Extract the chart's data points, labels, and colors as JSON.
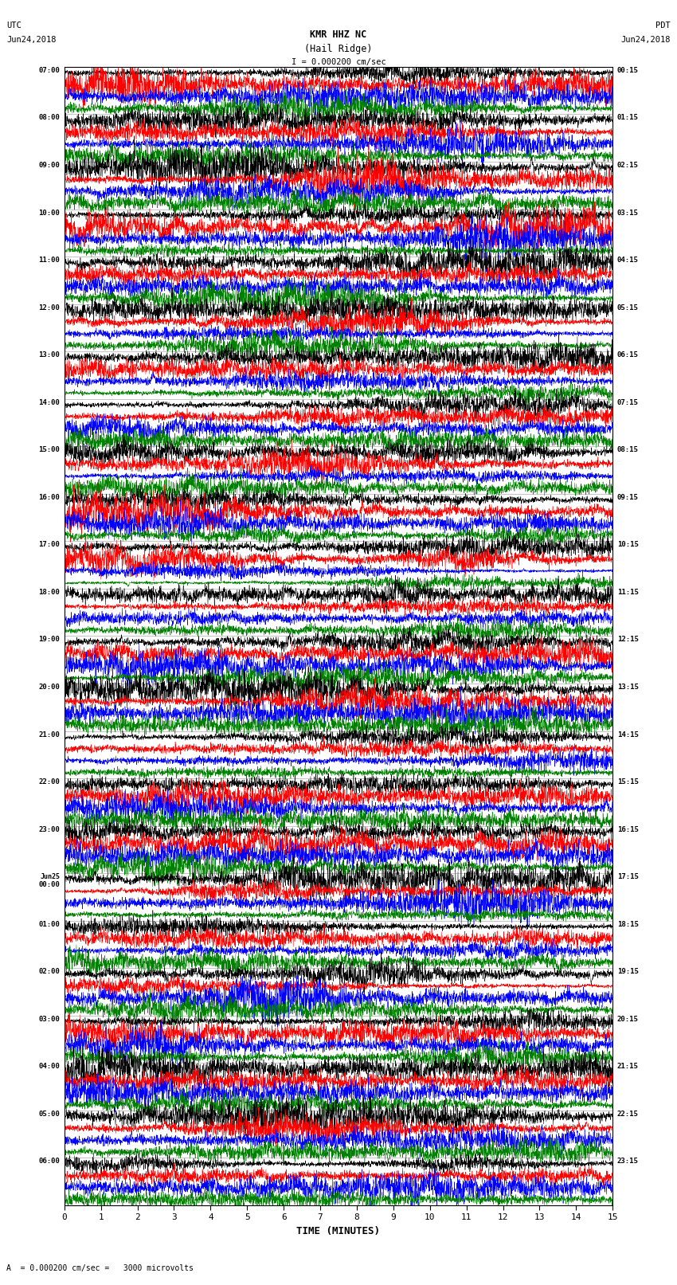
{
  "title_line1": "KMR HHZ NC",
  "title_line2": "(Hail Ridge)",
  "scale_bar": "I = 0.000200 cm/sec",
  "xlabel": "TIME (MINUTES)",
  "footer_note": "= 0.000200 cm/sec =   3000 microvolts",
  "x_min": 0,
  "x_max": 15,
  "x_ticks": [
    0,
    1,
    2,
    3,
    4,
    5,
    6,
    7,
    8,
    9,
    10,
    11,
    12,
    13,
    14,
    15
  ],
  "utc_labels": [
    "07:00",
    "08:00",
    "09:00",
    "10:00",
    "11:00",
    "12:00",
    "13:00",
    "14:00",
    "15:00",
    "16:00",
    "17:00",
    "18:00",
    "19:00",
    "20:00",
    "21:00",
    "22:00",
    "23:00",
    "Jun25\n00:00",
    "01:00",
    "02:00",
    "03:00",
    "04:00",
    "05:00",
    "06:00"
  ],
  "pdt_labels": [
    "00:15",
    "01:15",
    "02:15",
    "03:15",
    "04:15",
    "05:15",
    "06:15",
    "07:15",
    "08:15",
    "09:15",
    "10:15",
    "11:15",
    "12:15",
    "13:15",
    "14:15",
    "15:15",
    "16:15",
    "17:15",
    "18:15",
    "19:15",
    "20:15",
    "21:15",
    "22:15",
    "23:15"
  ],
  "n_hours": 24,
  "traces_per_hour": 4,
  "colors": [
    "black",
    "red",
    "blue",
    "green"
  ],
  "fig_width": 8.5,
  "fig_height": 16.13,
  "bg_color": "white",
  "noise_seed": 42
}
